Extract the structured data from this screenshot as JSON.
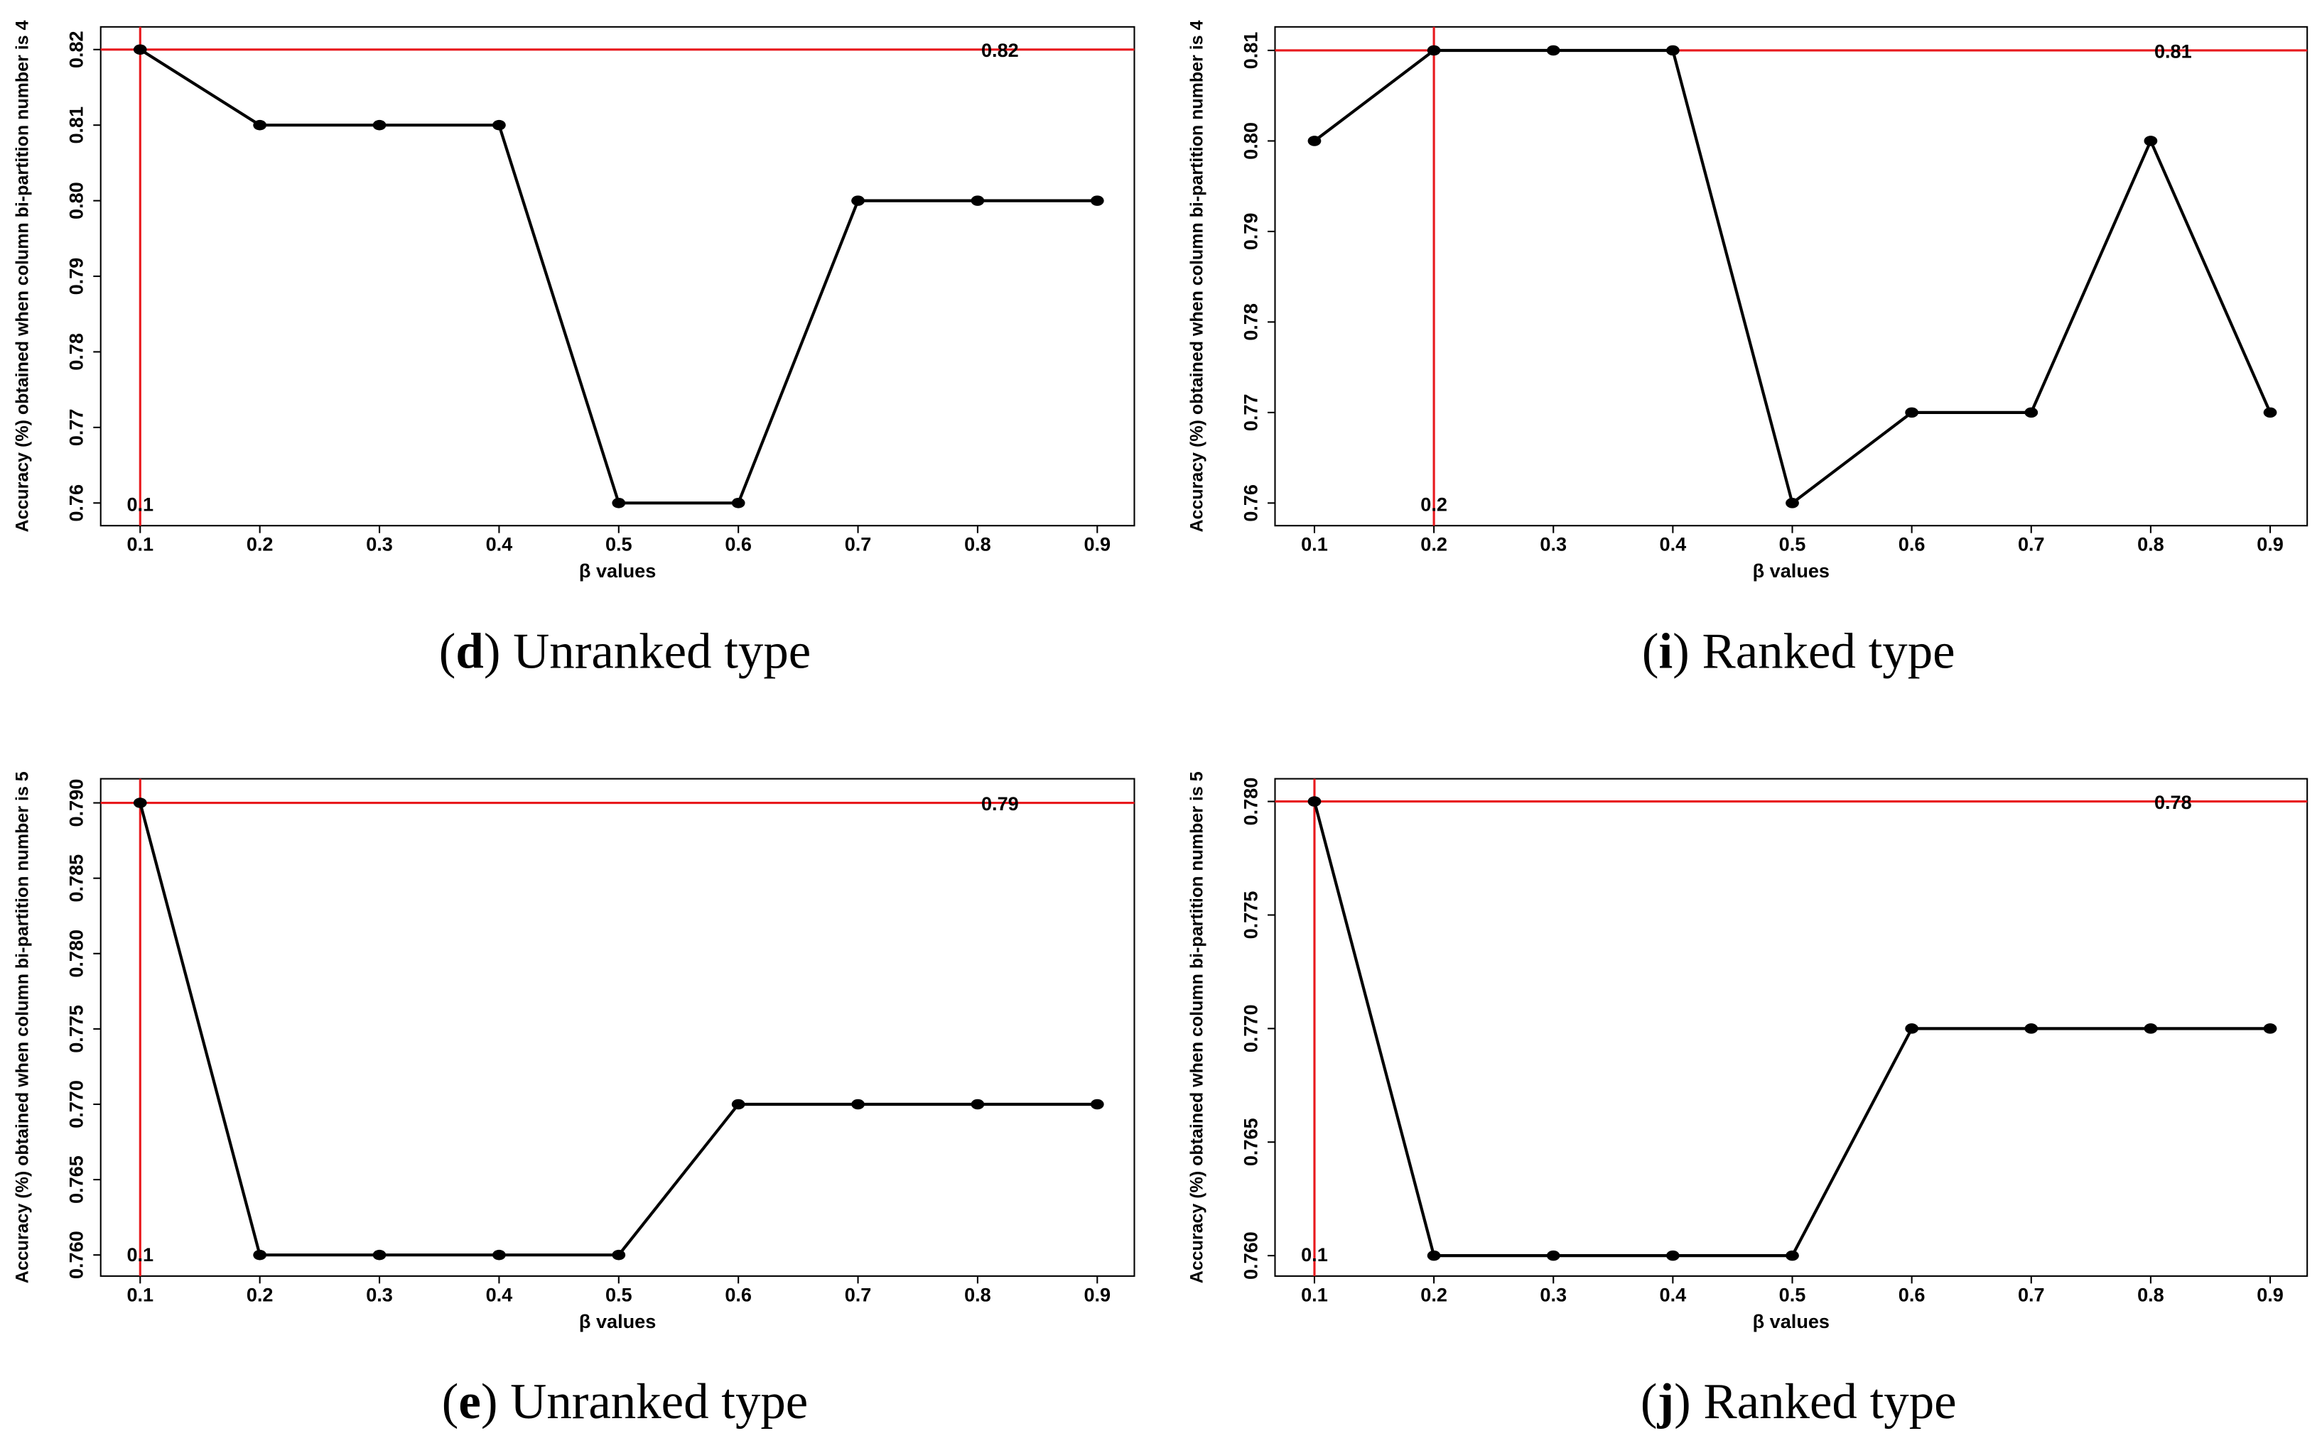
{
  "chart_data": [
    {
      "type": "line",
      "caption": [
        "(",
        "d",
        ") Unranked type"
      ],
      "xlabel": "β values",
      "ylabel": "Accuracy (%) obtained when column bi-partition number is 4",
      "x": [
        0.1,
        0.2,
        0.3,
        0.4,
        0.5,
        0.6,
        0.7,
        0.8,
        0.9
      ],
      "series": [
        {
          "color": "#000000",
          "values": [
            0.82,
            0.81,
            0.81,
            0.81,
            0.76,
            0.76,
            0.8,
            0.8,
            0.8
          ]
        }
      ],
      "xlim": [
        0.067,
        0.931
      ],
      "ylim": [
        0.757,
        0.823
      ],
      "xticks": [
        0.1,
        0.2,
        0.3,
        0.4,
        0.5,
        0.6,
        0.7,
        0.8,
        0.9
      ],
      "yticks": [
        0.76,
        0.77,
        0.78,
        0.79,
        {
          "value": 0.8,
          "label": "0.80"
        },
        0.81,
        0.82
      ],
      "hline": {
        "value": 0.82,
        "label": "0.82"
      },
      "vline": {
        "value": 0.1,
        "label": "0.1"
      },
      "ref_color": "#e8191d"
    },
    {
      "type": "line",
      "caption": [
        "(",
        "i",
        ") Ranked type"
      ],
      "xlabel": "β values",
      "ylabel": "Accuracy (%) obtained when column bi-partition number is 4",
      "x": [
        0.1,
        0.2,
        0.3,
        0.4,
        0.5,
        0.6,
        0.7,
        0.8,
        0.9
      ],
      "series": [
        {
          "color": "#000000",
          "values": [
            0.8,
            0.81,
            0.81,
            0.81,
            0.76,
            0.77,
            0.77,
            0.8,
            0.77
          ]
        }
      ],
      "xlim": [
        0.067,
        0.931
      ],
      "ylim": [
        0.7575,
        0.8126
      ],
      "xticks": [
        0.1,
        0.2,
        0.3,
        0.4,
        0.5,
        0.6,
        0.7,
        0.8,
        0.9
      ],
      "yticks": [
        0.76,
        0.77,
        0.78,
        0.79,
        {
          "value": 0.8,
          "label": "0.80"
        },
        0.81
      ],
      "hline": {
        "value": 0.81,
        "label": "0.81"
      },
      "vline": {
        "value": 0.2,
        "label": "0.2"
      },
      "ref_color": "#e8191d"
    },
    {
      "type": "line",
      "caption": [
        "(",
        "e",
        ") Unranked type"
      ],
      "xlabel": "β values",
      "ylabel": "Accuracy (%) obtained when column bi-partition number is 5",
      "x": [
        0.1,
        0.2,
        0.3,
        0.4,
        0.5,
        0.6,
        0.7,
        0.8,
        0.9
      ],
      "series": [
        {
          "color": "#000000",
          "values": [
            0.79,
            0.76,
            0.76,
            0.76,
            0.76,
            0.77,
            0.77,
            0.77,
            0.77
          ]
        }
      ],
      "xlim": [
        0.067,
        0.931
      ],
      "ylim": [
        0.7586,
        0.7916
      ],
      "xticks": [
        0.1,
        0.2,
        0.3,
        0.4,
        0.5,
        0.6,
        0.7,
        0.8,
        0.9
      ],
      "yticks": [
        {
          "value": 0.76,
          "label": "0.760"
        },
        0.765,
        {
          "value": 0.77,
          "label": "0.770"
        },
        0.775,
        {
          "value": 0.78,
          "label": "0.780"
        },
        0.785,
        {
          "value": 0.79,
          "label": "0.790"
        }
      ],
      "hline": {
        "value": 0.79,
        "label": "0.79"
      },
      "vline": {
        "value": 0.1,
        "label": "0.1"
      },
      "ref_color": "#e8191d"
    },
    {
      "type": "line",
      "caption": [
        "(",
        "j",
        ") Ranked type"
      ],
      "xlabel": "β values",
      "ylabel": "Accuracy (%) obtained when column bi-partition number is 5",
      "x": [
        0.1,
        0.2,
        0.3,
        0.4,
        0.5,
        0.6,
        0.7,
        0.8,
        0.9
      ],
      "series": [
        {
          "color": "#000000",
          "values": [
            0.78,
            0.76,
            0.76,
            0.76,
            0.76,
            0.77,
            0.77,
            0.77,
            0.77
          ]
        }
      ],
      "xlim": [
        0.067,
        0.931
      ],
      "ylim": [
        0.7591,
        0.781
      ],
      "xticks": [
        0.1,
        0.2,
        0.3,
        0.4,
        0.5,
        0.6,
        0.7,
        0.8,
        0.9
      ],
      "yticks": [
        {
          "value": 0.76,
          "label": "0.760"
        },
        0.765,
        {
          "value": 0.77,
          "label": "0.770"
        },
        0.775,
        {
          "value": 0.78,
          "label": "0.780"
        }
      ],
      "hline": {
        "value": 0.78,
        "label": "0.78"
      },
      "vline": {
        "value": 0.1,
        "label": "0.1"
      },
      "ref_color": "#e8191d"
    }
  ]
}
